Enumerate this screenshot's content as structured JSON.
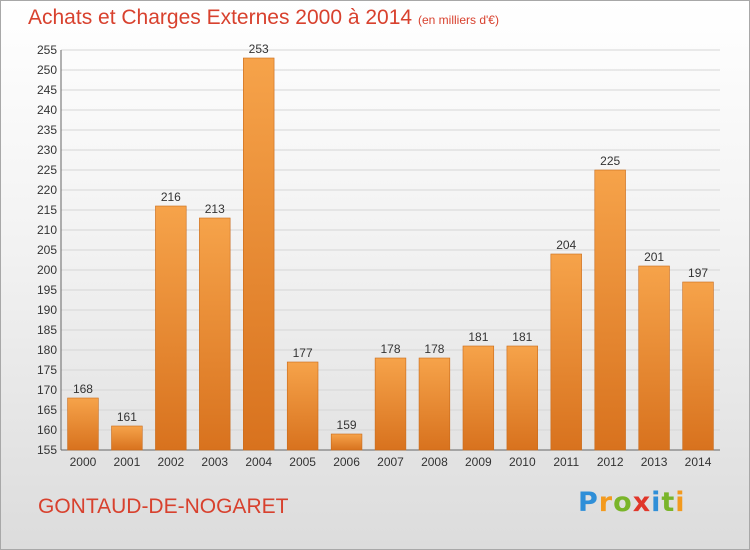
{
  "header": {
    "title": "Achats et Charges Externes 2000 à 2014",
    "unit": "(en milliers d'€)"
  },
  "footer": {
    "town": "GONTAUD-DE-NOGARET",
    "logo": "Proxiti"
  },
  "colors": {
    "bar_light": "#f6a34a",
    "bar_dark": "#d8721e",
    "title": "#d8412e"
  },
  "chart_data": {
    "type": "bar",
    "categories": [
      "2000",
      "2001",
      "2002",
      "2003",
      "2004",
      "2005",
      "2006",
      "2007",
      "2008",
      "2009",
      "2010",
      "2011",
      "2012",
      "2013",
      "2014"
    ],
    "values": [
      168,
      161,
      216,
      213,
      253,
      177,
      159,
      178,
      178,
      181,
      181,
      204,
      225,
      201,
      197
    ],
    "title": "Achats et Charges Externes 2000 à 2014",
    "ylim": [
      155,
      255
    ],
    "ytick_step": 5,
    "grid": true,
    "legend": "none"
  }
}
